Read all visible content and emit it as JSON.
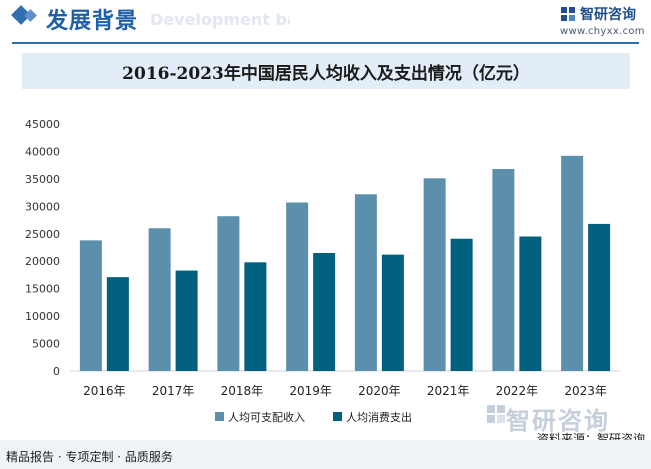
{
  "header": {
    "title": "发展背景",
    "title_en": "Development background",
    "brand_name": "智研咨询",
    "brand_url": "www.chyxx.com"
  },
  "chart_data": {
    "type": "bar",
    "title": "2016-2023年中国居民人均收入及支出情况（亿元）",
    "categories": [
      "2016年",
      "2017年",
      "2018年",
      "2019年",
      "2020年",
      "2021年",
      "2022年",
      "2023年"
    ],
    "series": [
      {
        "name": "人均可支配收入",
        "color": "#5b8fab",
        "values": [
          23800,
          26000,
          28200,
          30700,
          32200,
          35100,
          36800,
          39200
        ]
      },
      {
        "name": "人均消费支出",
        "color": "#00607e",
        "values": [
          17100,
          18300,
          19800,
          21500,
          21200,
          24100,
          24500,
          26800
        ]
      }
    ],
    "ylim": [
      0,
      45000
    ],
    "yticks": [
      0,
      5000,
      10000,
      15000,
      20000,
      25000,
      30000,
      35000,
      40000,
      45000
    ],
    "grid": false,
    "legend": "bottom"
  },
  "watermark": {
    "text": "智研咨询"
  },
  "source": "资料来源：智研咨询",
  "footer": {
    "left": "精品报告 · 专项定制 · 品质服务"
  }
}
